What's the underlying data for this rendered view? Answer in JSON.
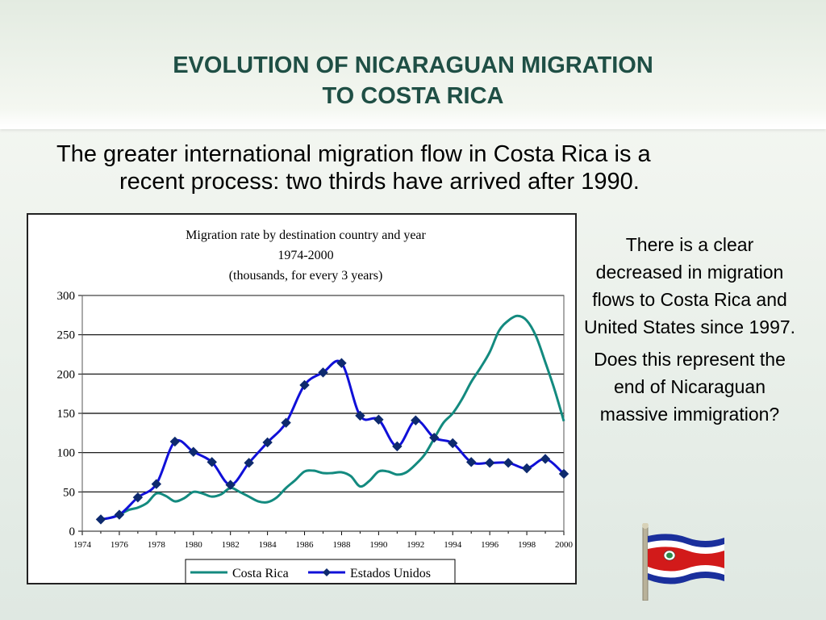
{
  "slide": {
    "title_line1": "EVOLUTION OF NICARAGUAN MIGRATION",
    "title_line2": "TO COSTA RICA",
    "subtitle_line1": "The greater international migration flow in Costa Rica is a",
    "subtitle_line2": "recent process: two thirds have arrived after 1990.",
    "side_p1": "There is a clear decreased in migration flows to Costa Rica and United States since 1997.",
    "side_p2": "Does this represent the end of Nicaraguan massive immigration?",
    "flag_icon": "costa-rica-flag-icon"
  },
  "chart_data": {
    "type": "line",
    "title": "Migration rate by destination country and year",
    "subtitle1": "1974-2000",
    "subtitle2": "(thousands, for every 3 years)",
    "xlim": [
      1974,
      2000
    ],
    "ylim": [
      0,
      300
    ],
    "yticks": [
      0,
      50,
      100,
      150,
      200,
      250,
      300
    ],
    "xticks": [
      1974,
      1976,
      1978,
      1980,
      1982,
      1984,
      1986,
      1988,
      1990,
      1992,
      1994,
      1996,
      1998,
      2000
    ],
    "grid": true,
    "legend_position": "bottom",
    "series": [
      {
        "name": "Costa Rica",
        "color": "#138a7f",
        "markers": false,
        "x": [
          1975,
          1975.5,
          1976,
          1976.5,
          1977,
          1977.5,
          1978,
          1978.5,
          1979,
          1979.5,
          1980,
          1980.5,
          1981,
          1981.5,
          1982,
          1982.5,
          1983,
          1983.5,
          1984,
          1984.5,
          1985,
          1985.5,
          1986,
          1986.5,
          1987,
          1987.5,
          1988,
          1988.5,
          1989,
          1989.5,
          1990,
          1990.5,
          1991,
          1991.5,
          1992,
          1992.5,
          1993,
          1993.5,
          1994,
          1994.5,
          1995,
          1995.5,
          1996,
          1996.5,
          1997,
          1997.5,
          1998,
          1998.5,
          1999,
          1999.5,
          2000
        ],
        "y": [
          15,
          17,
          21,
          27,
          30,
          36,
          48,
          45,
          38,
          42,
          50,
          48,
          44,
          47,
          55,
          50,
          44,
          38,
          37,
          43,
          55,
          65,
          76,
          77,
          74,
          74,
          75,
          70,
          57,
          64,
          76,
          76,
          72,
          75,
          85,
          98,
          118,
          138,
          150,
          168,
          190,
          208,
          228,
          255,
          268,
          274,
          268,
          248,
          215,
          180,
          140
        ]
      },
      {
        "name": "Estados Unidos",
        "color": "#1010d8",
        "markers": true,
        "x": [
          1975,
          1976,
          1977,
          1978,
          1979,
          1980,
          1981,
          1982,
          1983,
          1984,
          1985,
          1986,
          1987,
          1988,
          1989,
          1990,
          1991,
          1992,
          1993,
          1994,
          1995,
          1996,
          1997,
          1998,
          1999,
          2000
        ],
        "y": [
          15,
          21,
          43,
          60,
          114,
          101,
          88,
          59,
          87,
          113,
          138,
          186,
          202,
          214,
          147,
          142,
          108,
          141,
          119,
          112,
          88,
          87,
          87,
          80,
          92,
          73
        ]
      }
    ]
  }
}
